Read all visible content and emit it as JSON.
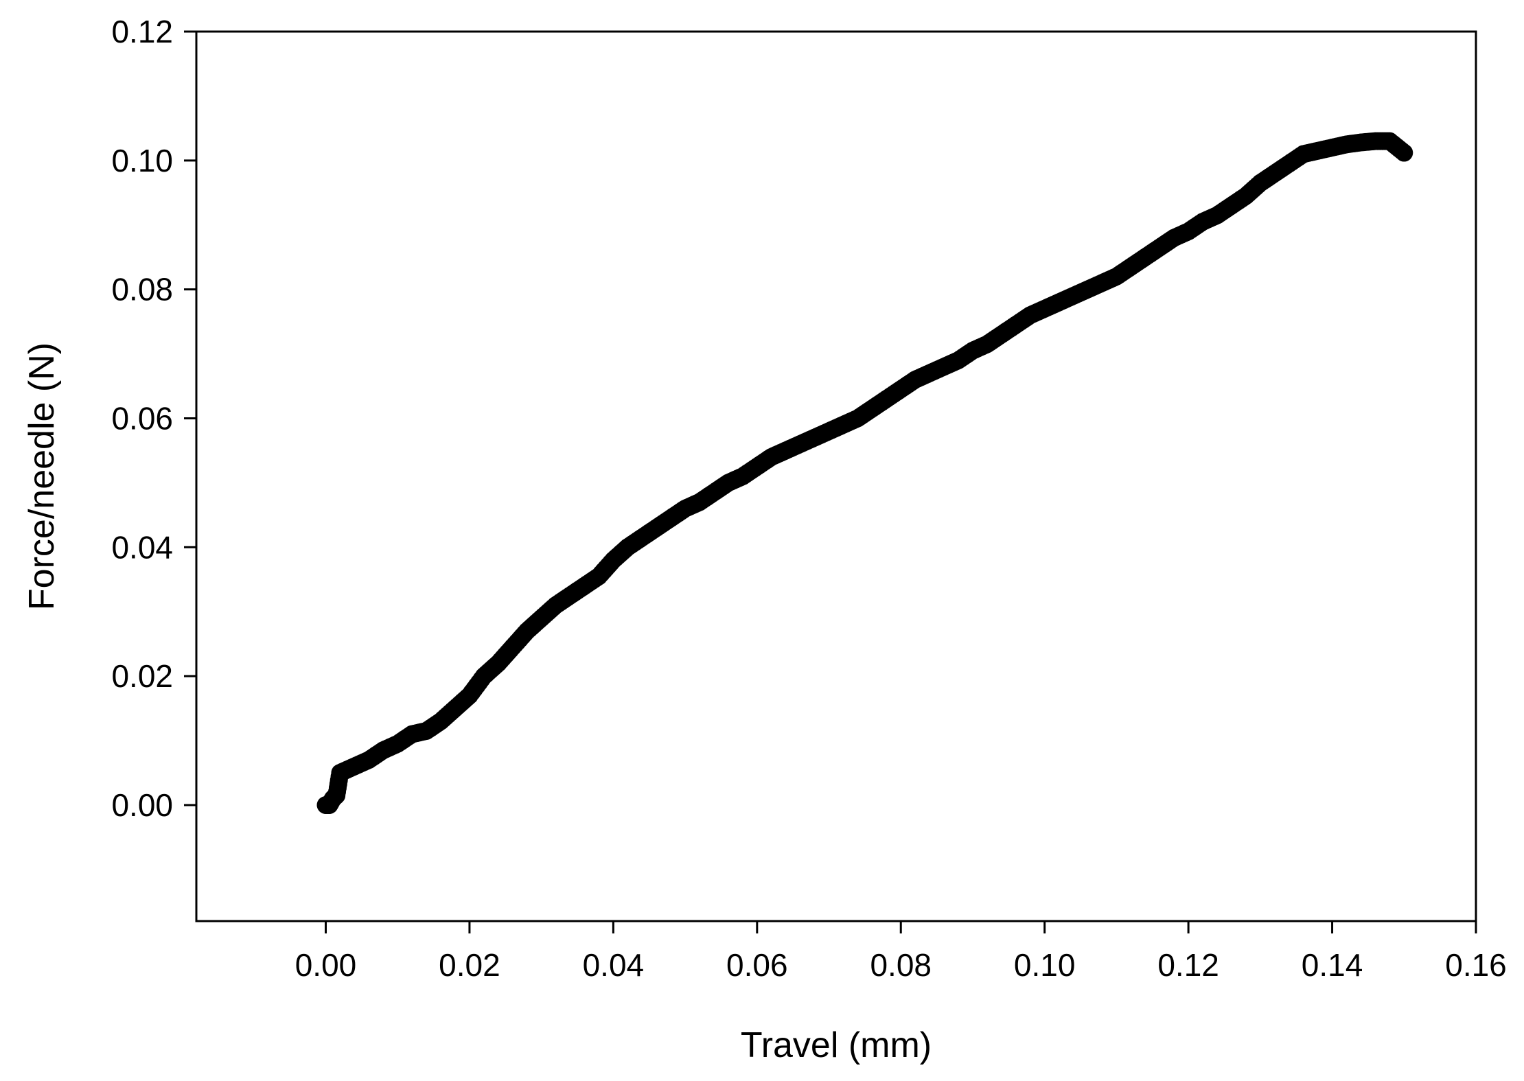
{
  "chart_data": {
    "type": "scatter",
    "title": "",
    "xlabel": "Travel (mm)",
    "ylabel": "Force/needle (N)",
    "xlim": [
      -0.018,
      0.16
    ],
    "ylim": [
      -0.018,
      0.12
    ],
    "x_ticks": [
      "0.00",
      "0.02",
      "0.04",
      "0.06",
      "0.08",
      "0.10",
      "0.12",
      "0.14",
      "0.16"
    ],
    "y_ticks": [
      "0.00",
      "0.02",
      "0.04",
      "0.06",
      "0.08",
      "0.10",
      "0.12"
    ],
    "grid": false,
    "legend": false,
    "marker_color": "#000000",
    "series": [
      {
        "x": [
          0.0,
          0.0005,
          0.001,
          0.0015,
          0.002,
          0.004,
          0.006,
          0.008,
          0.01,
          0.012,
          0.014,
          0.016,
          0.018,
          0.02,
          0.022,
          0.024,
          0.026,
          0.028,
          0.03,
          0.032,
          0.034,
          0.036,
          0.038,
          0.04,
          0.042,
          0.044,
          0.046,
          0.048,
          0.05,
          0.052,
          0.054,
          0.056,
          0.058,
          0.06,
          0.062,
          0.064,
          0.066,
          0.068,
          0.07,
          0.072,
          0.074,
          0.076,
          0.078,
          0.08,
          0.082,
          0.084,
          0.086,
          0.088,
          0.09,
          0.092,
          0.094,
          0.096,
          0.098,
          0.1,
          0.102,
          0.104,
          0.106,
          0.108,
          0.11,
          0.112,
          0.114,
          0.116,
          0.118,
          0.12,
          0.122,
          0.124,
          0.126,
          0.128,
          0.13,
          0.132,
          0.134,
          0.136,
          0.138,
          0.14,
          0.142,
          0.144,
          0.146,
          0.148,
          0.15
        ],
        "y": [
          0.0,
          0.0,
          0.001,
          0.0015,
          0.005,
          0.006,
          0.007,
          0.0085,
          0.0095,
          0.011,
          0.0115,
          0.013,
          0.015,
          0.017,
          0.02,
          0.022,
          0.0245,
          0.027,
          0.029,
          0.031,
          0.0325,
          0.034,
          0.0355,
          0.038,
          0.04,
          0.0415,
          0.043,
          0.0445,
          0.046,
          0.047,
          0.0485,
          0.05,
          0.051,
          0.0525,
          0.054,
          0.055,
          0.056,
          0.057,
          0.058,
          0.059,
          0.06,
          0.0615,
          0.063,
          0.0645,
          0.066,
          0.067,
          0.068,
          0.069,
          0.0705,
          0.0715,
          0.073,
          0.0745,
          0.076,
          0.077,
          0.078,
          0.079,
          0.08,
          0.081,
          0.082,
          0.0835,
          0.085,
          0.0865,
          0.088,
          0.089,
          0.0905,
          0.0915,
          0.093,
          0.0945,
          0.0965,
          0.098,
          0.0995,
          0.101,
          0.1015,
          0.102,
          0.1025,
          0.1028,
          0.103,
          0.103,
          0.1012
        ]
      }
    ]
  }
}
